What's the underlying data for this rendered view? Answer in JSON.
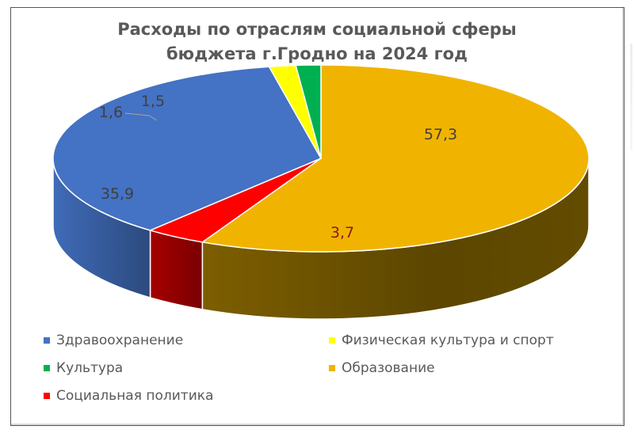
{
  "chart": {
    "title_line1": "Расходы по отраслям социальной сферы",
    "title_line2": "бюджета г.Гродно на 2024 год"
  },
  "chart_data": {
    "type": "pie",
    "style": "3d",
    "title": "Расходы по отраслям социальной сферы бюджета г.Гродно на 2024 год",
    "categories": [
      "Здравоохранение",
      "Физическая культура и спорт",
      "Культура",
      "Образование",
      "Социальная политика"
    ],
    "values": [
      35.9,
      1.6,
      1.5,
      57.3,
      3.7
    ],
    "value_labels": [
      "35,9",
      "1,6",
      "1,5",
      "57,3",
      "3,7"
    ],
    "colors": [
      "#4472C4",
      "#FFFF00",
      "#00B050",
      "#F0B400",
      "#FF0000"
    ],
    "draw_order": [
      "Образование",
      "Социальная политика",
      "Здравоохранение",
      "Физическая культура и спорт",
      "Культура"
    ],
    "legend_position": "bottom",
    "legend": [
      {
        "label": "Здравоохранение",
        "color": "#4472C4"
      },
      {
        "label": "Физическая культура и спорт",
        "color": "#FFFF00"
      },
      {
        "label": "Культура",
        "color": "#00B050"
      },
      {
        "label": "Образование",
        "color": "#F0B400"
      },
      {
        "label": "Социальная политика",
        "color": "#FF0000"
      }
    ]
  }
}
